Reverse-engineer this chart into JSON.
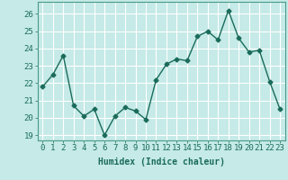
{
  "x": [
    0,
    1,
    2,
    3,
    4,
    5,
    6,
    7,
    8,
    9,
    10,
    11,
    12,
    13,
    14,
    15,
    16,
    17,
    18,
    19,
    20,
    21,
    22,
    23
  ],
  "y": [
    21.8,
    22.5,
    23.6,
    20.7,
    20.1,
    20.5,
    19.0,
    20.1,
    20.6,
    20.4,
    19.9,
    22.2,
    23.1,
    23.4,
    23.3,
    24.7,
    25.0,
    24.5,
    26.2,
    24.6,
    23.8,
    23.9,
    22.1,
    20.5
  ],
  "line_color": "#1a6b5a",
  "marker": "D",
  "marker_size": 2.5,
  "line_width": 1.0,
  "xlabel": "Humidex (Indice chaleur)",
  "xlabel_fontsize": 7,
  "xlabel_fontweight": "bold",
  "xlim": [
    -0.5,
    23.5
  ],
  "ylim": [
    18.7,
    26.7
  ],
  "yticks": [
    19,
    20,
    21,
    22,
    23,
    24,
    25,
    26
  ],
  "xticks": [
    0,
    1,
    2,
    3,
    4,
    5,
    6,
    7,
    8,
    9,
    10,
    11,
    12,
    13,
    14,
    15,
    16,
    17,
    18,
    19,
    20,
    21,
    22,
    23
  ],
  "bg_color": "#c5eae7",
  "grid_color": "#ffffff",
  "tick_fontsize": 6.5,
  "spine_color": "#4a9a8a"
}
